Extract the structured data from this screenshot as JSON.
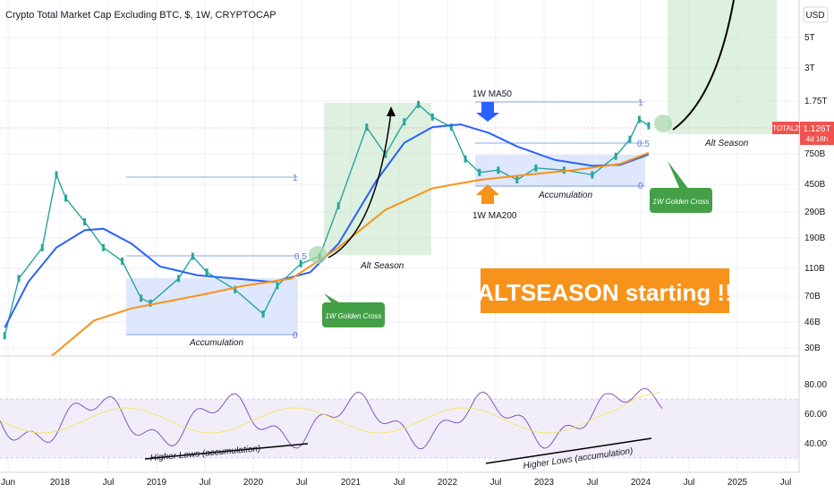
{
  "chart_data": {
    "type": "line",
    "title": "Crypto Total Market Cap Excluding BTC, $, 1W, CRYPTOCAP",
    "currency": "USD",
    "symbol_badge": "TOTAL2",
    "last_price": "1.126T",
    "countdown": "4d 16h",
    "y_ticks": [
      "5T",
      "3T",
      "1.75T",
      "750B",
      "450B",
      "290B",
      "190B",
      "110B",
      "70B",
      "46B",
      "30B"
    ],
    "x_ticks": [
      "Jun",
      "2018",
      "Jul",
      "2019",
      "Jul",
      "2020",
      "Jul",
      "2021",
      "Jul",
      "2022",
      "Jul",
      "2023",
      "Jul",
      "2024",
      "Jul",
      "2025",
      "Jul"
    ],
    "rsi_ticks": [
      "80.00",
      "60.00",
      "40.00"
    ],
    "annotations": {
      "headline": "ALTSEASON starting !!",
      "golden_cross_1": "1W Golden Cross",
      "golden_cross_2": "1W Golden Cross",
      "alt_season_1": "Alt Season",
      "alt_season_2": "Alt Season",
      "accumulation_1": "Accumulation",
      "accumulation_2": "Accumulation",
      "ma50_label": "1W MA50",
      "ma200_label": "1W MA200",
      "higher_lows_1": "Higher Lows (accumulation)",
      "higher_lows_2": "Higher Lows (accumulation)",
      "fib_1_one": "1",
      "fib_1_half": "0.5",
      "fib_1_zero": "0",
      "fib_2_one": "1",
      "fib_2_half": "0.5",
      "fib_2_zero": "0"
    },
    "series": [
      {
        "name": "TOTAL2",
        "color": "#26a69a",
        "values": [
          [
            2017.45,
            35
          ],
          [
            2017.6,
            90
          ],
          [
            2017.85,
            150
          ],
          [
            2018.0,
            500
          ],
          [
            2018.1,
            340
          ],
          [
            2018.3,
            230
          ],
          [
            2018.5,
            150
          ],
          [
            2018.7,
            120
          ],
          [
            2018.9,
            65
          ],
          [
            2019.0,
            60
          ],
          [
            2019.3,
            90
          ],
          [
            2019.45,
            130
          ],
          [
            2019.6,
            100
          ],
          [
            2019.9,
            75
          ],
          [
            2020.2,
            50
          ],
          [
            2020.35,
            80
          ],
          [
            2020.6,
            115
          ],
          [
            2020.8,
            130
          ],
          [
            2021.0,
            300
          ],
          [
            2021.3,
            1100
          ],
          [
            2021.5,
            700
          ],
          [
            2021.7,
            1200
          ],
          [
            2021.85,
            1600
          ],
          [
            2022.0,
            1300
          ],
          [
            2022.2,
            1100
          ],
          [
            2022.35,
            650
          ],
          [
            2022.5,
            520
          ],
          [
            2022.7,
            540
          ],
          [
            2022.9,
            460
          ],
          [
            2023.1,
            560
          ],
          [
            2023.4,
            540
          ],
          [
            2023.7,
            500
          ],
          [
            2023.95,
            680
          ],
          [
            2024.1,
            900
          ],
          [
            2024.2,
            1250
          ],
          [
            2024.3,
            1126
          ]
        ]
      },
      {
        "name": "1W MA50",
        "color": "#2962ff",
        "values": [
          [
            2017.45,
            40
          ],
          [
            2017.7,
            85
          ],
          [
            2018.0,
            150
          ],
          [
            2018.3,
            200
          ],
          [
            2018.5,
            205
          ],
          [
            2018.8,
            160
          ],
          [
            2019.1,
            110
          ],
          [
            2019.5,
            95
          ],
          [
            2019.9,
            90
          ],
          [
            2020.3,
            85
          ],
          [
            2020.7,
            100
          ],
          [
            2021.0,
            160
          ],
          [
            2021.4,
            450
          ],
          [
            2021.7,
            850
          ],
          [
            2022.0,
            1100
          ],
          [
            2022.3,
            1150
          ],
          [
            2022.6,
            1000
          ],
          [
            2022.9,
            800
          ],
          [
            2023.3,
            640
          ],
          [
            2023.7,
            580
          ],
          [
            2024.0,
            590
          ],
          [
            2024.3,
            700
          ]
        ]
      },
      {
        "name": "1W MA200",
        "color": "#f7931a",
        "values": [
          [
            2017.95,
            25
          ],
          [
            2018.4,
            45
          ],
          [
            2018.8,
            55
          ],
          [
            2019.2,
            62
          ],
          [
            2019.6,
            70
          ],
          [
            2020.0,
            80
          ],
          [
            2020.5,
            90
          ],
          [
            2021.0,
            150
          ],
          [
            2021.5,
            280
          ],
          [
            2022.0,
            400
          ],
          [
            2022.5,
            460
          ],
          [
            2023.0,
            500
          ],
          [
            2023.5,
            540
          ],
          [
            2024.0,
            600
          ],
          [
            2024.3,
            720
          ]
        ]
      }
    ],
    "ylim_log": [
      25,
      9000
    ],
    "xlim": [
      2017.4,
      2025.9
    ],
    "grid": true
  }
}
